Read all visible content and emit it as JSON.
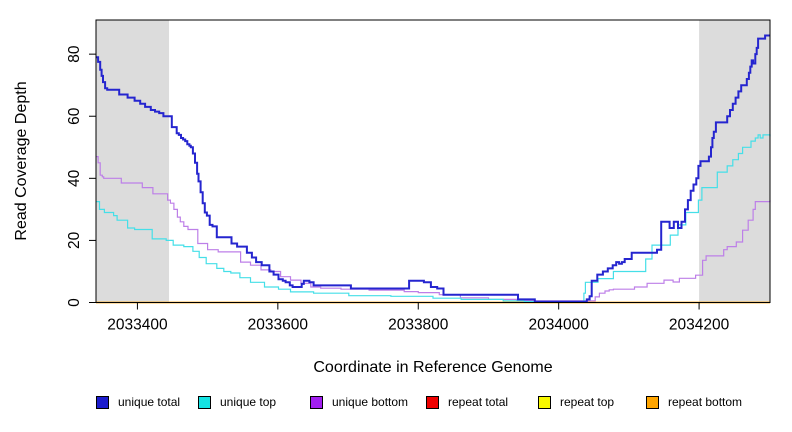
{
  "chart_data": {
    "type": "line",
    "title": "",
    "xlabel": "Coordinate in Reference Genome",
    "ylabel": "Read Coverage Depth",
    "xlim": [
      2033341,
      2034301
    ],
    "ylim": [
      0,
      91
    ],
    "x_ticks": [
      2033400,
      2033600,
      2033800,
      2034000,
      2034200
    ],
    "y_ticks": [
      0,
      20,
      40,
      60,
      80
    ],
    "grid": false,
    "legend_position": "bottom",
    "step_interpolation": true,
    "background_color": "#ffffff",
    "shaded_band_color": "#dcdcdc",
    "shaded_regions": [
      {
        "x0": 2033341,
        "x1": 2033445
      },
      {
        "x0": 2034200,
        "x1": 2034301
      }
    ],
    "draw_order": [
      3,
      4,
      5,
      2,
      1,
      0
    ],
    "series": [
      {
        "name": "unique total",
        "color": "#2525cf",
        "legend_color": "#1c1ccd",
        "line_width": 2,
        "points": [
          [
            2033341,
            79
          ],
          [
            2033344,
            77.5
          ],
          [
            2033347,
            75
          ],
          [
            2033349,
            73
          ],
          [
            2033351,
            71
          ],
          [
            2033354,
            69
          ],
          [
            2033357,
            68.5
          ],
          [
            2033374,
            67
          ],
          [
            2033386,
            66
          ],
          [
            2033396,
            65
          ],
          [
            2033404,
            64
          ],
          [
            2033411,
            63
          ],
          [
            2033419,
            62
          ],
          [
            2033425,
            61.5
          ],
          [
            2033431,
            61
          ],
          [
            2033437,
            60
          ],
          [
            2033449,
            56.5
          ],
          [
            2033456,
            54.5
          ],
          [
            2033459,
            54
          ],
          [
            2033462,
            53
          ],
          [
            2033465,
            52.5
          ],
          [
            2033468,
            52
          ],
          [
            2033471,
            51
          ],
          [
            2033474,
            50.5
          ],
          [
            2033476,
            50
          ],
          [
            2033479,
            48
          ],
          [
            2033482,
            45
          ],
          [
            2033485,
            41.5
          ],
          [
            2033487,
            39
          ],
          [
            2033490,
            35.5
          ],
          [
            2033493,
            32
          ],
          [
            2033496,
            29
          ],
          [
            2033499,
            28
          ],
          [
            2033503,
            25
          ],
          [
            2033507,
            24.5
          ],
          [
            2033513,
            21
          ],
          [
            2033534,
            19
          ],
          [
            2033542,
            18
          ],
          [
            2033556,
            16
          ],
          [
            2033563,
            14.5
          ],
          [
            2033569,
            13
          ],
          [
            2033577,
            12
          ],
          [
            2033588,
            10
          ],
          [
            2033594,
            9
          ],
          [
            2033601,
            7.5
          ],
          [
            2033607,
            7
          ],
          [
            2033611,
            6.5
          ],
          [
            2033617,
            5.5
          ],
          [
            2033621,
            5
          ],
          [
            2033634,
            6
          ],
          [
            2033637,
            7
          ],
          [
            2033645,
            6.5
          ],
          [
            2033651,
            5.5
          ],
          [
            2033704,
            4.5
          ],
          [
            2033787,
            7
          ],
          [
            2033808,
            6.5
          ],
          [
            2033818,
            5
          ],
          [
            2033827,
            4.5
          ],
          [
            2033836,
            2.5
          ],
          [
            2033942,
            1
          ],
          [
            2033966,
            0.3
          ],
          [
            2034040,
            1
          ],
          [
            2034044,
            2
          ],
          [
            2034047,
            7
          ],
          [
            2034055,
            9
          ],
          [
            2034063,
            10
          ],
          [
            2034070,
            11
          ],
          [
            2034077,
            12
          ],
          [
            2034082,
            13
          ],
          [
            2034086,
            12.5
          ],
          [
            2034090,
            13
          ],
          [
            2034094,
            14
          ],
          [
            2034104,
            16
          ],
          [
            2034140,
            17
          ],
          [
            2034146,
            26
          ],
          [
            2034158,
            24
          ],
          [
            2034164,
            26
          ],
          [
            2034170,
            24
          ],
          [
            2034175,
            26
          ],
          [
            2034180,
            30
          ],
          [
            2034184,
            33
          ],
          [
            2034188,
            36
          ],
          [
            2034192,
            38
          ],
          [
            2034196,
            40
          ],
          [
            2034199,
            44
          ],
          [
            2034202,
            45.5
          ],
          [
            2034214,
            47
          ],
          [
            2034217,
            50
          ],
          [
            2034219,
            53
          ],
          [
            2034221,
            55
          ],
          [
            2034224,
            58
          ],
          [
            2034240,
            60
          ],
          [
            2034244,
            62
          ],
          [
            2034248,
            64
          ],
          [
            2034252,
            66
          ],
          [
            2034256,
            68
          ],
          [
            2034260,
            70
          ],
          [
            2034268,
            72
          ],
          [
            2034271,
            74
          ],
          [
            2034273,
            76
          ],
          [
            2034275,
            78
          ],
          [
            2034277,
            77
          ],
          [
            2034280,
            80
          ],
          [
            2034282,
            82
          ],
          [
            2034284,
            85
          ],
          [
            2034294,
            86
          ],
          [
            2034301,
            86
          ]
        ]
      },
      {
        "name": "unique top",
        "color": "#45dfe8",
        "legend_color": "#14e3e3",
        "line_width": 1.2,
        "points": [
          [
            2033341,
            32.5
          ],
          [
            2033346,
            30
          ],
          [
            2033353,
            29
          ],
          [
            2033366,
            28
          ],
          [
            2033371,
            26.5
          ],
          [
            2033386,
            24
          ],
          [
            2033396,
            23.5
          ],
          [
            2033421,
            20.5
          ],
          [
            2033441,
            20
          ],
          [
            2033451,
            18.5
          ],
          [
            2033466,
            18
          ],
          [
            2033479,
            16.5
          ],
          [
            2033488,
            14.5
          ],
          [
            2033498,
            12.5
          ],
          [
            2033513,
            11
          ],
          [
            2033523,
            10
          ],
          [
            2033533,
            9.5
          ],
          [
            2033546,
            8
          ],
          [
            2033561,
            6.5
          ],
          [
            2033581,
            5
          ],
          [
            2033601,
            4.3
          ],
          [
            2033618,
            3.4
          ],
          [
            2033651,
            3
          ],
          [
            2033701,
            2.2
          ],
          [
            2033761,
            2
          ],
          [
            2033821,
            1.4
          ],
          [
            2033861,
            1
          ],
          [
            2033921,
            0.5
          ],
          [
            2033951,
            0.3
          ],
          [
            2034036,
            3
          ],
          [
            2034038,
            6.5
          ],
          [
            2034056,
            7.7
          ],
          [
            2034078,
            10
          ],
          [
            2034124,
            14
          ],
          [
            2034133,
            18.5
          ],
          [
            2034159,
            21.7
          ],
          [
            2034170,
            25
          ],
          [
            2034181,
            29
          ],
          [
            2034199,
            33
          ],
          [
            2034204,
            37
          ],
          [
            2034226,
            42
          ],
          [
            2034240,
            44
          ],
          [
            2034248,
            46
          ],
          [
            2034256,
            48
          ],
          [
            2034262,
            50
          ],
          [
            2034274,
            52
          ],
          [
            2034280,
            53
          ],
          [
            2034284,
            54
          ],
          [
            2034287,
            53
          ],
          [
            2034291,
            54
          ],
          [
            2034301,
            53.5
          ]
        ]
      },
      {
        "name": "unique bottom",
        "color": "#bd7fe8",
        "legend_color": "#a21ff0",
        "line_width": 1.2,
        "points": [
          [
            2033341,
            47
          ],
          [
            2033344,
            45
          ],
          [
            2033347,
            41
          ],
          [
            2033350,
            40.5
          ],
          [
            2033352,
            40
          ],
          [
            2033377,
            38.5
          ],
          [
            2033407,
            37
          ],
          [
            2033422,
            35
          ],
          [
            2033443,
            33
          ],
          [
            2033447,
            32
          ],
          [
            2033452,
            30
          ],
          [
            2033457,
            27.5
          ],
          [
            2033461,
            26
          ],
          [
            2033466,
            24.5
          ],
          [
            2033472,
            23.5
          ],
          [
            2033486,
            19
          ],
          [
            2033500,
            17
          ],
          [
            2033515,
            16.3
          ],
          [
            2033547,
            13
          ],
          [
            2033561,
            12
          ],
          [
            2033576,
            10.5
          ],
          [
            2033590,
            10
          ],
          [
            2033604,
            8.3
          ],
          [
            2033618,
            7.2
          ],
          [
            2033633,
            6.2
          ],
          [
            2033647,
            5
          ],
          [
            2033661,
            4.6
          ],
          [
            2033690,
            4.3
          ],
          [
            2033730,
            4
          ],
          [
            2033780,
            3.5
          ],
          [
            2033800,
            3.2
          ],
          [
            2033830,
            2.5
          ],
          [
            2033860,
            1.5
          ],
          [
            2033900,
            1
          ],
          [
            2033940,
            0.5
          ],
          [
            2034046,
            0.5
          ],
          [
            2034052,
            1.8
          ],
          [
            2034058,
            3
          ],
          [
            2034066,
            3.7
          ],
          [
            2034072,
            4.1
          ],
          [
            2034078,
            4.3
          ],
          [
            2034108,
            5
          ],
          [
            2034126,
            6.2
          ],
          [
            2034150,
            7.2
          ],
          [
            2034163,
            6.6
          ],
          [
            2034172,
            7.8
          ],
          [
            2034195,
            8.8
          ],
          [
            2034205,
            13.6
          ],
          [
            2034210,
            15
          ],
          [
            2034235,
            17
          ],
          [
            2034240,
            18
          ],
          [
            2034253,
            19.5
          ],
          [
            2034262,
            23.3
          ],
          [
            2034270,
            26.5
          ],
          [
            2034277,
            30
          ],
          [
            2034280,
            32.5
          ],
          [
            2034301,
            33
          ]
        ]
      },
      {
        "name": "repeat total",
        "color": "#ee0000",
        "legend_color": "#ee0000",
        "line_width": 1.2,
        "points": [
          [
            2033341,
            0
          ],
          [
            2034301,
            0
          ]
        ]
      },
      {
        "name": "repeat top",
        "color": "#f8f800",
        "legend_color": "#f8f800",
        "line_width": 1.2,
        "points": [
          [
            2033341,
            0
          ],
          [
            2034301,
            0
          ]
        ]
      },
      {
        "name": "repeat bottom",
        "color": "#ffa500",
        "legend_color": "#ffa500",
        "line_width": 1.5,
        "points": [
          [
            2033341,
            0
          ],
          [
            2034301,
            0
          ]
        ]
      }
    ]
  }
}
